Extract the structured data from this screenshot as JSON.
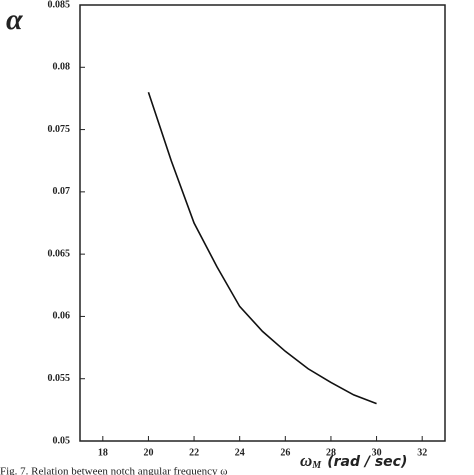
{
  "chart_data": {
    "type": "line",
    "ylabel": "α",
    "xlabel_symbol": "ω",
    "xlabel_subscript": "M",
    "xlabel_unit": "(rad / sec)",
    "caption": "Fig. 7. Relation between notch angular frequency ω",
    "x": [
      20,
      21,
      22,
      23,
      24,
      25,
      26,
      27,
      28,
      29,
      30
    ],
    "series": [
      {
        "name": "α",
        "color": "#111111",
        "values": [
          0.078,
          0.0725,
          0.0675,
          0.064,
          0.0608,
          0.0588,
          0.0572,
          0.0558,
          0.0547,
          0.0537,
          0.053
        ]
      }
    ],
    "xlim": [
      17,
      33
    ],
    "xticks": [
      18,
      20,
      22,
      24,
      26,
      28,
      30,
      32
    ],
    "ylim": [
      0.05,
      0.085
    ],
    "yticks": [
      0.05,
      0.055,
      0.06,
      0.065,
      0.07,
      0.075,
      0.08,
      0.085
    ],
    "grid": false
  }
}
